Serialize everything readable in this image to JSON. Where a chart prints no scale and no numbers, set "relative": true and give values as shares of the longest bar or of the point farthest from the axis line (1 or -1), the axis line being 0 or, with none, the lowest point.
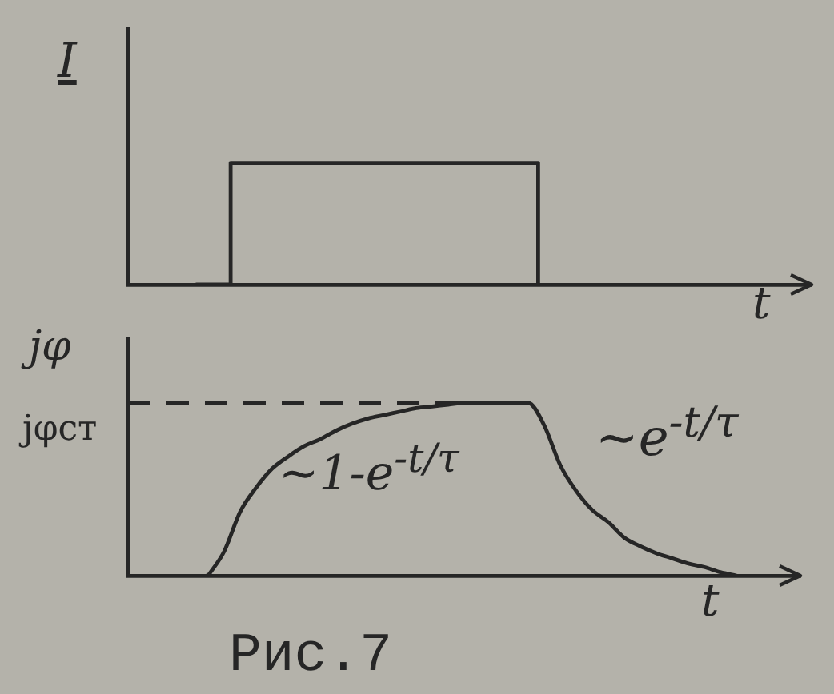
{
  "chart_data": [
    {
      "type": "step",
      "ylabel": "I",
      "xlabel": "t",
      "relative": true,
      "categories": [
        null,
        null,
        null,
        null,
        null,
        null,
        null,
        null,
        null,
        null,
        null,
        null,
        null,
        null,
        null,
        null,
        null,
        null,
        null,
        null,
        null
      ],
      "series": [
        {
          "color": "#262626",
          "values": [
            null,
            null,
            0,
            1,
            1,
            1,
            1,
            1,
            1,
            1,
            1,
            1,
            0,
            null,
            null,
            null,
            null,
            null,
            null,
            null,
            null
          ]
        }
      ],
      "tick_labels": false,
      "grid": false,
      "legend": false,
      "marker": "none"
    },
    {
      "type": "line",
      "ylabel": "jφ",
      "xlabel": "t",
      "relative": true,
      "categories": [
        null,
        null,
        null,
        null,
        null,
        null,
        null,
        null,
        null,
        null,
        null,
        null,
        null,
        null,
        null,
        null,
        null,
        null,
        null,
        null,
        null,
        null,
        null,
        null,
        null,
        null,
        null,
        null,
        null,
        null,
        null,
        null,
        null,
        null,
        null,
        null,
        null,
        null,
        null,
        null,
        null,
        null,
        null
      ],
      "series": [
        {
          "color": "#262626",
          "values": [
            null,
            null,
            null,
            null,
            null,
            0,
            0.14,
            0.37,
            0.51,
            0.62,
            0.69,
            0.75,
            0.79,
            0.84,
            0.88,
            0.91,
            0.93,
            0.95,
            0.97,
            0.98,
            0.99,
            1,
            1,
            1,
            1,
            1,
            0.87,
            0.64,
            0.49,
            0.38,
            0.31,
            0.22,
            0.17,
            0.13,
            0.1,
            0.07,
            0.05,
            0.02,
            0,
            null,
            null,
            null,
            null
          ]
        }
      ],
      "ref_lines": [
        {
          "axis": "y",
          "value": 1,
          "label": "jφст",
          "line_style": "dashed"
        }
      ],
      "annotations": [
        "~1-e$^{-t/τ}$",
        "~e$^{-t/τ}$",
        "Рис.7"
      ],
      "tick_labels": false,
      "grid": false,
      "legend": false,
      "marker": "none"
    }
  ]
}
